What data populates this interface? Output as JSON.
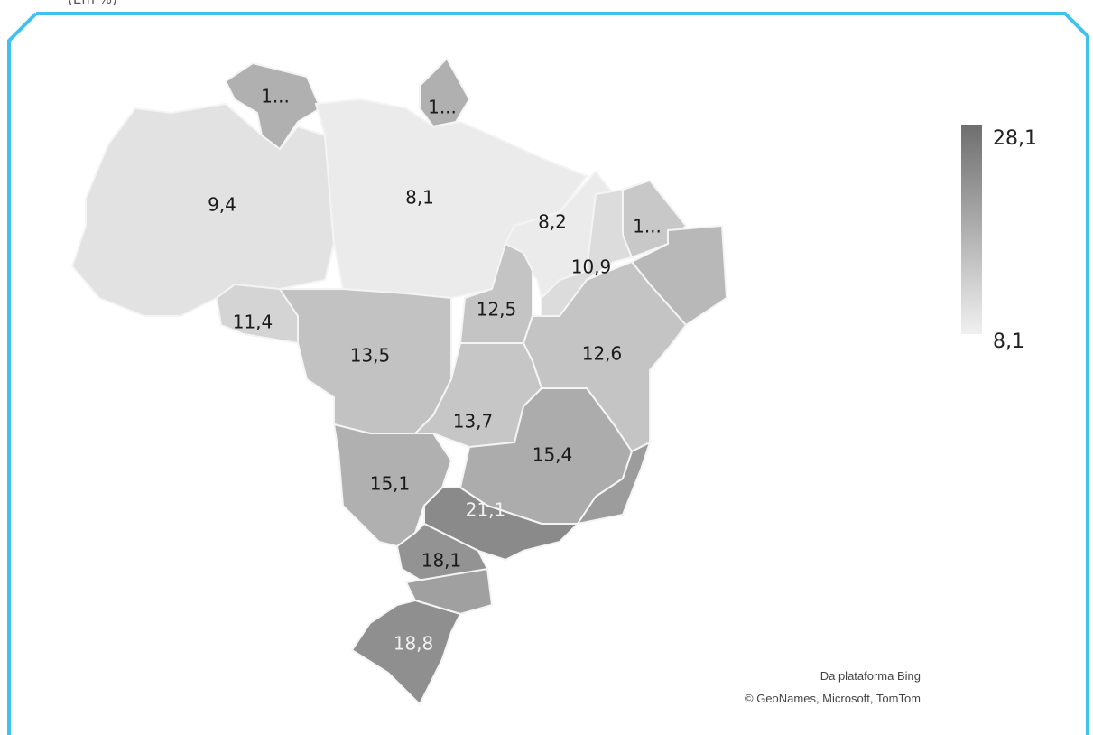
{
  "header": {
    "subtitle": "(Em %)"
  },
  "map": {
    "labels": [
      "1...",
      "1...",
      "9,4",
      "8,1",
      "8,2",
      "1...",
      "10,9",
      "11,4",
      "12,5",
      "13,5",
      "12,6",
      "13,7",
      "15,4",
      "15,1",
      "21,1",
      "18,1",
      "18,8"
    ]
  },
  "legend": {
    "max": "28,1",
    "min": "8,1"
  },
  "attribution": [
    "Da plataforma Bing",
    "© GeoNames, Microsoft, TomTom"
  ]
}
